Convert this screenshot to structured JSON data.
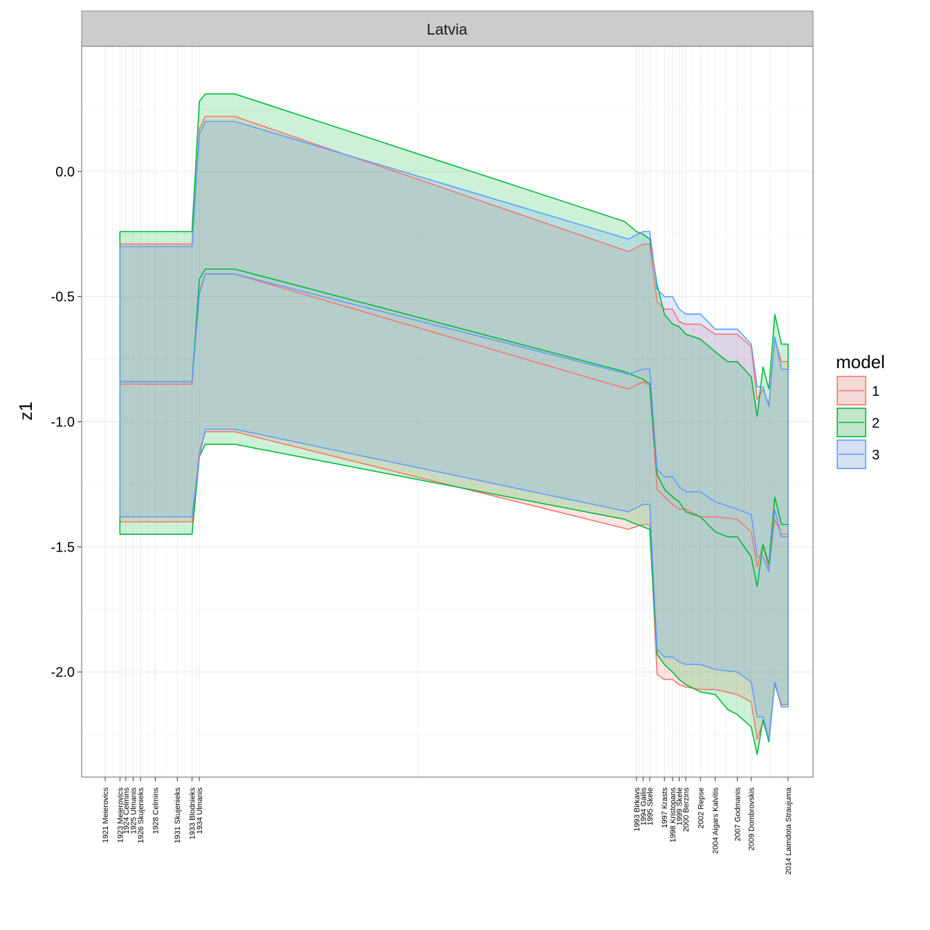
{
  "chart_data": {
    "type": "area",
    "facet": "Latvia",
    "ylabel": "z1",
    "xlabel": "",
    "ylim": [
      -2.42,
      0.5
    ],
    "xlim": [
      1918.2,
      2017.6
    ],
    "yticks": [
      {
        "value": 0.0,
        "label": "0.0"
      },
      {
        "value": -0.5,
        "label": "-0.5"
      },
      {
        "value": -1.0,
        "label": "-1.0"
      },
      {
        "value": -1.5,
        "label": "-1.5"
      },
      {
        "value": -2.0,
        "label": "-2.0"
      }
    ],
    "xticks": [
      {
        "x": 1921.4,
        "label": "1921 Meierovics"
      },
      {
        "x": 1923.4,
        "label": "1923 Meierovics"
      },
      {
        "x": 1924.2,
        "label": "1924 Celmins"
      },
      {
        "x": 1925.2,
        "label": "1925 Ulmanis"
      },
      {
        "x": 1926.2,
        "label": "1926 Skujenieks"
      },
      {
        "x": 1928.2,
        "label": "1928 Celmins"
      },
      {
        "x": 1931.2,
        "label": "1931 Skujenieks"
      },
      {
        "x": 1933.2,
        "label": "1933 Blodnieks"
      },
      {
        "x": 1934.2,
        "label": "1934 Ulmanis"
      },
      {
        "x": 1993.6,
        "label": "1993 Birkavs"
      },
      {
        "x": 1994.5,
        "label": "1994 Gailis"
      },
      {
        "x": 1995.4,
        "label": "1995 Skele"
      },
      {
        "x": 1997.4,
        "label": "1997 Krasts"
      },
      {
        "x": 1998.5,
        "label": "1998 Kristopans"
      },
      {
        "x": 1999.4,
        "label": "1999 Skele"
      },
      {
        "x": 2000.3,
        "label": "2000 Berzins"
      },
      {
        "x": 2002.3,
        "label": "2002 Repse"
      },
      {
        "x": 2004.3,
        "label": "2004 Aigars Kalvitis"
      },
      {
        "x": 2007.3,
        "label": "2007 Godmanis"
      },
      {
        "x": 2009.2,
        "label": "2009 Dombrovskis"
      },
      {
        "x": 2014.2,
        "label": "2014 Laimdota Straujuma"
      }
    ],
    "legend": {
      "title": "model",
      "position": "right"
    },
    "grid": true,
    "series": [
      {
        "name": "1",
        "color": "#F8766D",
        "fill": "#F8766D",
        "x": [
          1923.4,
          1923.4,
          1924.2,
          1925.2,
          1926.2,
          1928.2,
          1931.2,
          1933.2,
          1934.2,
          1935.0,
          1939.0,
          1992.5,
          1994.5,
          1995.0,
          1995.4,
          1996.4,
          1997.4,
          1998.5,
          1999.4,
          2000.3,
          2002.3,
          2004.3,
          2007.3,
          2009.2,
          2010.0,
          2010.8,
          2011.6,
          2012.4,
          2013.3,
          2014.2
        ],
        "mid": [
          -0.85,
          -0.85,
          -0.85,
          -0.85,
          -0.85,
          -0.85,
          -0.85,
          -0.85,
          -0.48,
          -0.41,
          -0.41,
          -0.87,
          -0.84,
          -0.85,
          -0.85,
          -1.27,
          -1.3,
          -1.33,
          -1.35,
          -1.35,
          -1.38,
          -1.38,
          -1.39,
          -1.44,
          -1.58,
          -1.49,
          -1.59,
          -1.39,
          -1.45,
          -1.45
        ],
        "upper": [
          -0.29,
          -0.29,
          -0.29,
          -0.29,
          -0.29,
          -0.29,
          -0.29,
          -0.29,
          0.17,
          0.22,
          0.22,
          -0.32,
          -0.29,
          -0.29,
          -0.29,
          -0.52,
          -0.55,
          -0.55,
          -0.6,
          -0.61,
          -0.61,
          -0.65,
          -0.65,
          -0.7,
          -0.91,
          -0.87,
          -0.93,
          -0.67,
          -0.76,
          -0.76
        ],
        "lower": [
          -1.4,
          -1.4,
          -1.4,
          -1.4,
          -1.4,
          -1.4,
          -1.4,
          -1.4,
          -1.12,
          -1.04,
          -1.04,
          -1.43,
          -1.41,
          -1.41,
          -1.41,
          -2.01,
          -2.03,
          -2.03,
          -2.05,
          -2.06,
          -2.07,
          -2.07,
          -2.09,
          -2.12,
          -2.27,
          -2.2,
          -2.27,
          -2.05,
          -2.13,
          -2.13
        ]
      },
      {
        "name": "2",
        "color": "#00BA38",
        "fill": "#00BA38",
        "x": [
          1923.4,
          1923.4,
          1924.2,
          1925.2,
          1926.2,
          1928.2,
          1931.2,
          1933.2,
          1934.2,
          1935.0,
          1939.0,
          1992.0,
          1993.6,
          1994.5,
          1995.4,
          1996.4,
          1997.4,
          1998.5,
          1999.4,
          2000.3,
          2002.3,
          2004.3,
          2006.0,
          2007.3,
          2009.2,
          2010.0,
          2010.8,
          2011.6,
          2012.4,
          2013.3,
          2014.2
        ],
        "mid": [
          -0.84,
          -0.84,
          -0.84,
          -0.84,
          -0.84,
          -0.84,
          -0.84,
          -0.84,
          -0.43,
          -0.39,
          -0.39,
          -0.8,
          -0.82,
          -0.83,
          -0.85,
          -1.21,
          -1.27,
          -1.3,
          -1.32,
          -1.36,
          -1.38,
          -1.44,
          -1.46,
          -1.46,
          -1.54,
          -1.66,
          -1.49,
          -1.57,
          -1.3,
          -1.41,
          -1.41
        ],
        "upper": [
          -0.24,
          -0.24,
          -0.24,
          -0.24,
          -0.24,
          -0.24,
          -0.24,
          -0.24,
          0.28,
          0.31,
          0.31,
          -0.2,
          -0.24,
          -0.25,
          -0.27,
          -0.45,
          -0.57,
          -0.61,
          -0.62,
          -0.65,
          -0.67,
          -0.72,
          -0.76,
          -0.76,
          -0.82,
          -0.98,
          -0.78,
          -0.87,
          -0.57,
          -0.69,
          -0.69
        ],
        "lower": [
          -1.45,
          -1.45,
          -1.45,
          -1.45,
          -1.45,
          -1.45,
          -1.45,
          -1.45,
          -1.14,
          -1.09,
          -1.09,
          -1.39,
          -1.41,
          -1.42,
          -1.43,
          -1.93,
          -1.97,
          -2.0,
          -2.03,
          -2.05,
          -2.08,
          -2.09,
          -2.15,
          -2.17,
          -2.22,
          -2.33,
          -2.19,
          -2.28,
          -2.04,
          -2.14,
          -2.14
        ]
      },
      {
        "name": "3",
        "color": "#619CFF",
        "fill": "#619CFF",
        "x": [
          1923.4,
          1923.4,
          1924.2,
          1925.2,
          1926.2,
          1928.2,
          1931.2,
          1933.2,
          1934.2,
          1935.0,
          1939.0,
          1992.5,
          1994.5,
          1995.0,
          1995.4,
          1996.4,
          1997.4,
          1998.5,
          1999.4,
          2000.3,
          2002.3,
          2004.3,
          2007.3,
          2009.2,
          2010.0,
          2010.8,
          2011.6,
          2012.4,
          2013.3,
          2014.2
        ],
        "mid": [
          -0.84,
          -0.84,
          -0.84,
          -0.84,
          -0.84,
          -0.84,
          -0.84,
          -0.84,
          -0.49,
          -0.41,
          -0.41,
          -0.81,
          -0.79,
          -0.79,
          -0.79,
          -1.19,
          -1.22,
          -1.22,
          -1.26,
          -1.28,
          -1.28,
          -1.32,
          -1.35,
          -1.37,
          -1.54,
          -1.54,
          -1.6,
          -1.35,
          -1.46,
          -1.46
        ],
        "upper": [
          -0.3,
          -0.3,
          -0.3,
          -0.3,
          -0.3,
          -0.3,
          -0.3,
          -0.3,
          0.15,
          0.2,
          0.2,
          -0.27,
          -0.24,
          -0.24,
          -0.24,
          -0.47,
          -0.5,
          -0.5,
          -0.55,
          -0.57,
          -0.57,
          -0.63,
          -0.63,
          -0.69,
          -0.86,
          -0.86,
          -0.94,
          -0.66,
          -0.79,
          -0.79
        ],
        "lower": [
          -1.38,
          -1.38,
          -1.38,
          -1.38,
          -1.38,
          -1.38,
          -1.38,
          -1.38,
          -1.14,
          -1.03,
          -1.03,
          -1.36,
          -1.33,
          -1.33,
          -1.33,
          -1.91,
          -1.94,
          -1.94,
          -1.96,
          -1.97,
          -1.97,
          -1.99,
          -2.0,
          -2.04,
          -2.18,
          -2.18,
          -2.27,
          -2.04,
          -2.14,
          -2.14
        ]
      }
    ]
  }
}
